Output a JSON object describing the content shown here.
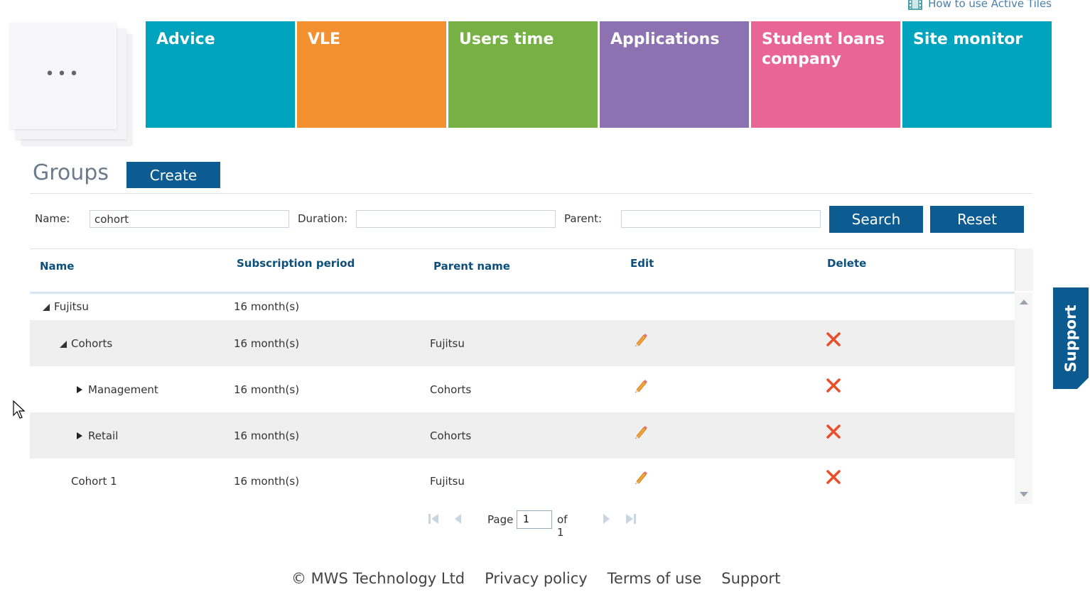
{
  "howto": {
    "label": "How to use Active Tiles"
  },
  "stack": {
    "dots": "•••"
  },
  "tiles": [
    {
      "label": "Advice",
      "color": "#00a3bd"
    },
    {
      "label": "VLE",
      "color": "#f39130"
    },
    {
      "label": "Users time",
      "color": "#77b044"
    },
    {
      "label": "Applications",
      "color": "#8c72b1"
    },
    {
      "label": "Student loans company",
      "color": "#e96594"
    },
    {
      "label": "Site monitor",
      "color": "#00a3bd"
    }
  ],
  "groups": {
    "title": "Groups",
    "create_label": "Create"
  },
  "filters": {
    "name_label": "Name:",
    "name_value": "cohort",
    "duration_label": "Duration:",
    "duration_value": "",
    "parent_label": "Parent:",
    "parent_value": "",
    "search_label": "Search",
    "reset_label": "Reset"
  },
  "grid": {
    "columns": [
      "Name",
      "Subscription period",
      "Parent name",
      "Edit",
      "Delete"
    ],
    "rows": [
      {
        "name": "Fujitsu",
        "period": "16 month(s)",
        "parent": "",
        "expander": "expanded",
        "level": 0,
        "editable": false
      },
      {
        "name": "Cohorts",
        "period": "16 month(s)",
        "parent": "Fujitsu",
        "expander": "expanded",
        "level": 1,
        "editable": true
      },
      {
        "name": "Management",
        "period": "16 month(s)",
        "parent": "Cohorts",
        "expander": "collapsed",
        "level": 2,
        "editable": true
      },
      {
        "name": "Retail",
        "period": "16 month(s)",
        "parent": "Cohorts",
        "expander": "collapsed",
        "level": 2,
        "editable": true
      },
      {
        "name": "Cohort 1",
        "period": "16 month(s)",
        "parent": "Fujitsu",
        "expander": "none",
        "level": 1,
        "editable": true
      }
    ]
  },
  "pager": {
    "page_label": "Page",
    "page_value": "1",
    "of_label": "of 1"
  },
  "footer": {
    "copyright": "© MWS Technology Ltd",
    "privacy": "Privacy policy",
    "terms": "Terms of use",
    "support": "Support"
  },
  "support_tab": {
    "label": "Support"
  },
  "colors": {
    "primary_button": "#0d5c91",
    "header_text": "#0d4f7c",
    "delete_x": "#e8502a"
  }
}
